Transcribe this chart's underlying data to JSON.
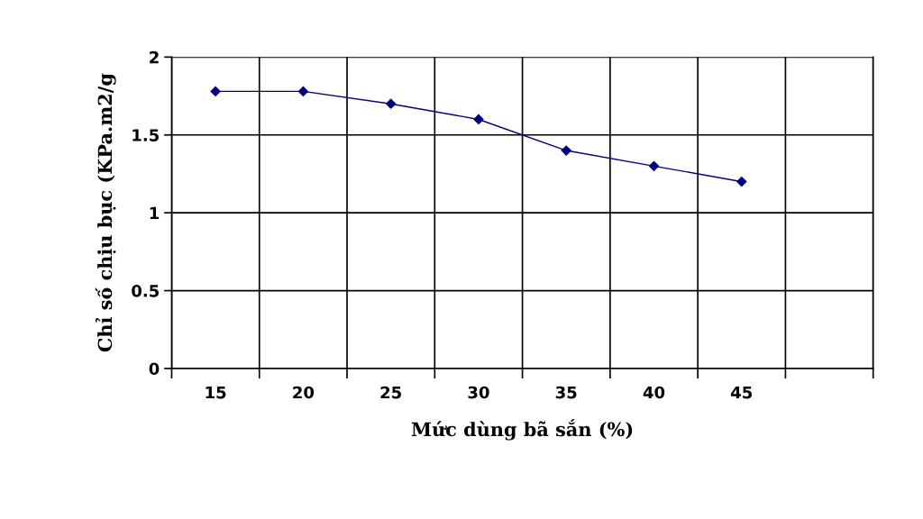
{
  "chart_data": {
    "type": "line",
    "xlabel": "Mức dùng bã sắn (%)",
    "ylabel": "Chỉ số chịu bục (KPa.m2/g",
    "categories": [
      "15",
      "20",
      "25",
      "30",
      "35",
      "40",
      "45",
      null
    ],
    "series": [
      {
        "color": "#00007f",
        "values": [
          1.78,
          1.78,
          1.7,
          1.6,
          1.4,
          1.3,
          1.2,
          null
        ]
      }
    ],
    "ylim": [
      0,
      2
    ],
    "yticks": [
      0,
      0.5,
      1,
      1.5,
      2
    ],
    "grid": true,
    "marker": "diamond",
    "line_style": "solid"
  }
}
